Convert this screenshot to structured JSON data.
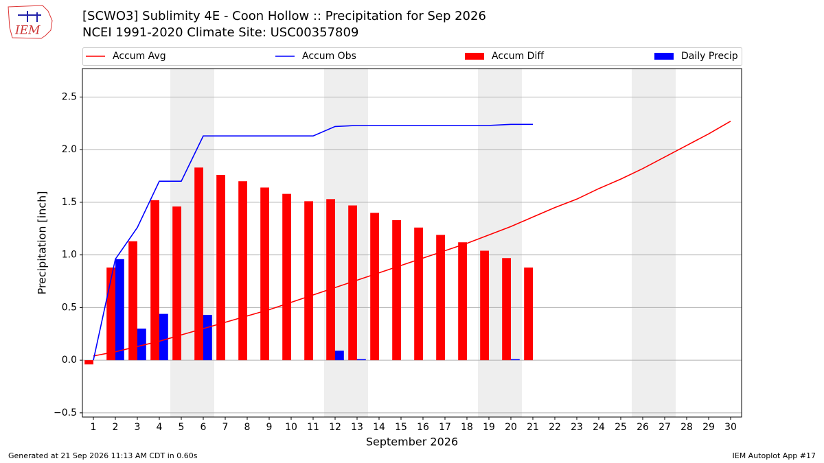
{
  "logo_text": "IEM",
  "footer_left": "Generated at 21 Sep 2026 11:13 AM CDT in 0.60s",
  "footer_right": "IEM Autoplot App #17",
  "chart_data": {
    "type": "bar",
    "title": "[SCWO3] Sublimity 4E - Coon Hollow :: Precipitation for Sep 2026",
    "subtitle": "NCEI 1991-2020 Climate Site: USC00357809",
    "x_label": "September 2026",
    "y_label": "Precipitation [inch]",
    "x": [
      1,
      2,
      3,
      4,
      5,
      6,
      7,
      8,
      9,
      10,
      11,
      12,
      13,
      14,
      15,
      16,
      17,
      18,
      19,
      20,
      21,
      22,
      23,
      24,
      25,
      26,
      27,
      28,
      29,
      30
    ],
    "xlim": [
      0.5,
      30.5
    ],
    "xticks": [
      1,
      2,
      3,
      4,
      5,
      6,
      7,
      8,
      9,
      10,
      11,
      12,
      13,
      14,
      15,
      16,
      17,
      18,
      19,
      20,
      21,
      22,
      23,
      24,
      25,
      26,
      27,
      28,
      29,
      30
    ],
    "ylim": [
      -0.54,
      2.77
    ],
    "yticks": [
      {
        "value": -0.5,
        "label": "−0.5"
      },
      {
        "value": 0,
        "label": "0.0"
      },
      0.5,
      {
        "value": 1,
        "label": "1.0"
      },
      1.5,
      {
        "value": 2,
        "label": "2.0"
      },
      2.5
    ],
    "grid": true,
    "shaded_spans": [
      [
        4.5,
        6.5
      ],
      [
        11.5,
        13.5
      ],
      [
        18.5,
        20.5
      ],
      [
        25.5,
        27.5
      ]
    ],
    "series": [
      {
        "name": "Accum Avg",
        "type": "line",
        "color": "#ff0000",
        "values": [
          0.04,
          0.08,
          0.13,
          0.18,
          0.24,
          0.3,
          0.36,
          0.42,
          0.48,
          0.55,
          0.62,
          0.69,
          0.76,
          0.83,
          0.9,
          0.97,
          1.04,
          1.11,
          1.19,
          1.27,
          1.36,
          1.45,
          1.53,
          1.63,
          1.72,
          1.82,
          1.93,
          2.04,
          2.15,
          2.27
        ]
      },
      {
        "name": "Accum Obs",
        "type": "line",
        "color": "#0000ff",
        "values": [
          0.0,
          0.96,
          1.26,
          1.7,
          1.7,
          2.13,
          2.13,
          2.13,
          2.13,
          2.13,
          2.13,
          2.22,
          2.23,
          2.23,
          2.23,
          2.23,
          2.23,
          2.23,
          2.23,
          2.24,
          2.24,
          null,
          null,
          null,
          null,
          null,
          null,
          null,
          null,
          null
        ]
      },
      {
        "name": "Accum Diff",
        "type": "bar",
        "color": "#ff0000",
        "values": [
          -0.04,
          0.88,
          1.13,
          1.52,
          1.46,
          1.83,
          1.76,
          1.7,
          1.64,
          1.58,
          1.51,
          1.53,
          1.47,
          1.4,
          1.33,
          1.26,
          1.19,
          1.12,
          1.04,
          0.97,
          0.88,
          null,
          null,
          null,
          null,
          null,
          null,
          null,
          null,
          null
        ]
      },
      {
        "name": "Daily Precip",
        "type": "bar",
        "color": "#0000ff",
        "values": [
          0,
          0.96,
          0.3,
          0.44,
          0,
          0.43,
          0,
          0,
          0,
          0,
          0,
          0.09,
          0.01,
          0,
          0,
          0,
          0,
          0,
          0,
          0.01,
          0,
          null,
          null,
          null,
          null,
          null,
          null,
          null,
          null,
          null
        ]
      }
    ]
  }
}
